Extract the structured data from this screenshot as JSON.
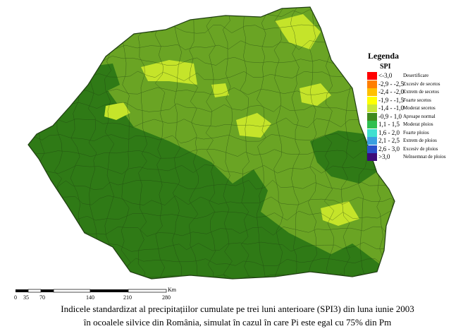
{
  "legend": {
    "title": "Legenda",
    "subtitle": "SPI",
    "items": [
      {
        "range": "<-3,0",
        "label": "Desertificare",
        "color": "#ff0000"
      },
      {
        "range": "-2,9 - -2,5",
        "label": "Excesiv de secetos",
        "color": "#ff7f00"
      },
      {
        "range": "-2,4 - -2,0",
        "label": "Extrem de secetos",
        "color": "#ffc000"
      },
      {
        "range": "-1,9 - -1,5",
        "label": "Foarte secetos",
        "color": "#ffff00"
      },
      {
        "range": "-1,4 - -1,0",
        "label": "Moderat secetos",
        "color": "#c8e639"
      },
      {
        "range": "-0,9 - 1,0",
        "label": "Aproape normal",
        "color": "#3f8a1e"
      },
      {
        "range": "1,1 - 1,5",
        "label": "Moderat ploios",
        "color": "#2fbf4f"
      },
      {
        "range": "1,6 - 2,0",
        "label": "Foarte ploios",
        "color": "#40e0d0"
      },
      {
        "range": "2,1 - 2,5",
        "label": "Extrem de ploios",
        "color": "#3aa0e0"
      },
      {
        "range": "2,6 - 3,0",
        "label": "Excesiv de ploios",
        "color": "#2850c8"
      },
      {
        "range": ">3,0",
        "label": "Neînsemnat de ploios",
        "color": "#3c0a78"
      }
    ]
  },
  "scale": {
    "ticks": [
      "0",
      "35",
      "70",
      "140",
      "210",
      "280"
    ],
    "unit": "Km"
  },
  "caption": {
    "line1": "Indicele standardizat al precipitațiilor cumulate pe trei luni anterioare (SPI3) din luna iunie 2003",
    "line2": "în ocoalele silvice din România, simulat în cazul în care Pi este egal cu 75% din Pm"
  },
  "map_colors": {
    "base": "#6aa424",
    "dark": "#2f7a16",
    "light": "#c5e42a",
    "border": "#1e3d10"
  }
}
